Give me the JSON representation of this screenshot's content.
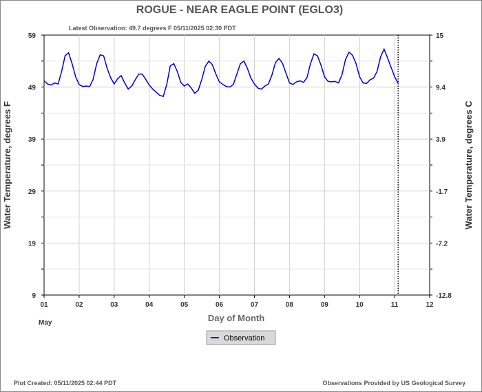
{
  "chart_data": {
    "type": "line",
    "title": "ROGUE - NEAR EAGLE POINT  (EGLO3)",
    "subtitle": "Latest Observation: 49.7 degrees F 05/11/2025 02:30 PDT",
    "xlabel": "Day of Month",
    "x_month_label": "May",
    "ylabel_left": "Water Temperature, degrees F",
    "ylabel_right": "Water Temperature, degrees C",
    "xlim": [
      1,
      12
    ],
    "ylim": [
      9,
      59
    ],
    "x_ticks": [
      1,
      2,
      3,
      4,
      5,
      6,
      7,
      8,
      9,
      10,
      11,
      12
    ],
    "x_tick_labels": [
      "01",
      "02",
      "03",
      "04",
      "05",
      "06",
      "07",
      "08",
      "09",
      "10",
      "11",
      "12"
    ],
    "y_left_ticks": [
      9,
      19,
      29,
      39,
      49,
      59
    ],
    "y_left_tick_labels": [
      "9",
      "19",
      "29",
      "39",
      "49",
      "59"
    ],
    "y_right_tick_labels": [
      "-12.8",
      "-7.2",
      "-1.7",
      "3.9",
      "9.4",
      "15"
    ],
    "latest_observation_x": 11.1,
    "grid": true,
    "legend": "bottom-center",
    "series": [
      {
        "name": "Observation",
        "color": "#0000cc",
        "points": [
          [
            1.0,
            50.2
          ],
          [
            1.1,
            49.6
          ],
          [
            1.2,
            49.4
          ],
          [
            1.3,
            49.8
          ],
          [
            1.4,
            49.6
          ],
          [
            1.5,
            52.0
          ],
          [
            1.6,
            55.0
          ],
          [
            1.7,
            55.6
          ],
          [
            1.8,
            53.5
          ],
          [
            1.9,
            51.0
          ],
          [
            2.0,
            49.5
          ],
          [
            2.1,
            49.1
          ],
          [
            2.2,
            49.2
          ],
          [
            2.3,
            49.1
          ],
          [
            2.4,
            50.5
          ],
          [
            2.5,
            53.5
          ],
          [
            2.6,
            55.2
          ],
          [
            2.7,
            55.0
          ],
          [
            2.8,
            52.6
          ],
          [
            2.9,
            50.8
          ],
          [
            3.0,
            49.6
          ],
          [
            3.1,
            50.6
          ],
          [
            3.2,
            51.2
          ],
          [
            3.3,
            49.8
          ],
          [
            3.4,
            48.6
          ],
          [
            3.5,
            49.2
          ],
          [
            3.6,
            50.4
          ],
          [
            3.7,
            51.5
          ],
          [
            3.8,
            51.5
          ],
          [
            3.9,
            50.5
          ],
          [
            4.0,
            49.4
          ],
          [
            4.1,
            48.6
          ],
          [
            4.2,
            48.0
          ],
          [
            4.3,
            47.4
          ],
          [
            4.4,
            47.2
          ],
          [
            4.5,
            49.5
          ],
          [
            4.6,
            53.1
          ],
          [
            4.7,
            53.5
          ],
          [
            4.8,
            52.0
          ],
          [
            4.9,
            49.9
          ],
          [
            5.0,
            49.2
          ],
          [
            5.1,
            49.6
          ],
          [
            5.2,
            48.8
          ],
          [
            5.3,
            47.8
          ],
          [
            5.4,
            48.4
          ],
          [
            5.5,
            50.5
          ],
          [
            5.6,
            53.0
          ],
          [
            5.7,
            54.0
          ],
          [
            5.8,
            53.3
          ],
          [
            5.9,
            51.5
          ],
          [
            6.0,
            50.0
          ],
          [
            6.1,
            49.5
          ],
          [
            6.2,
            49.1
          ],
          [
            6.3,
            49.0
          ],
          [
            6.4,
            49.5
          ],
          [
            6.5,
            51.5
          ],
          [
            6.6,
            53.5
          ],
          [
            6.7,
            54.0
          ],
          [
            6.8,
            52.6
          ],
          [
            6.9,
            50.7
          ],
          [
            7.0,
            49.6
          ],
          [
            7.1,
            48.8
          ],
          [
            7.2,
            48.6
          ],
          [
            7.3,
            49.2
          ],
          [
            7.4,
            49.6
          ],
          [
            7.5,
            51.3
          ],
          [
            7.6,
            53.7
          ],
          [
            7.7,
            54.5
          ],
          [
            7.8,
            53.6
          ],
          [
            7.9,
            51.7
          ],
          [
            8.0,
            49.8
          ],
          [
            8.1,
            49.5
          ],
          [
            8.2,
            50.0
          ],
          [
            8.3,
            50.2
          ],
          [
            8.4,
            49.9
          ],
          [
            8.5,
            50.8
          ],
          [
            8.6,
            53.5
          ],
          [
            8.7,
            55.4
          ],
          [
            8.8,
            55.0
          ],
          [
            8.9,
            53.2
          ],
          [
            9.0,
            51.0
          ],
          [
            9.1,
            50.1
          ],
          [
            9.2,
            50.0
          ],
          [
            9.3,
            50.1
          ],
          [
            9.4,
            49.8
          ],
          [
            9.5,
            51.4
          ],
          [
            9.6,
            54.3
          ],
          [
            9.7,
            55.7
          ],
          [
            9.8,
            55.1
          ],
          [
            9.9,
            53.5
          ],
          [
            10.0,
            51.0
          ],
          [
            10.1,
            49.8
          ],
          [
            10.2,
            49.7
          ],
          [
            10.3,
            50.4
          ],
          [
            10.4,
            50.7
          ],
          [
            10.5,
            52.0
          ],
          [
            10.6,
            54.8
          ],
          [
            10.7,
            56.3
          ],
          [
            10.8,
            54.6
          ],
          [
            10.9,
            52.8
          ],
          [
            11.0,
            51.0
          ],
          [
            11.1,
            49.7
          ]
        ]
      }
    ]
  },
  "footer": {
    "plot_created": "Plot Created: 05/11/2025 02:44 PDT",
    "provider": "Observations Provided by US Geological Survey"
  }
}
